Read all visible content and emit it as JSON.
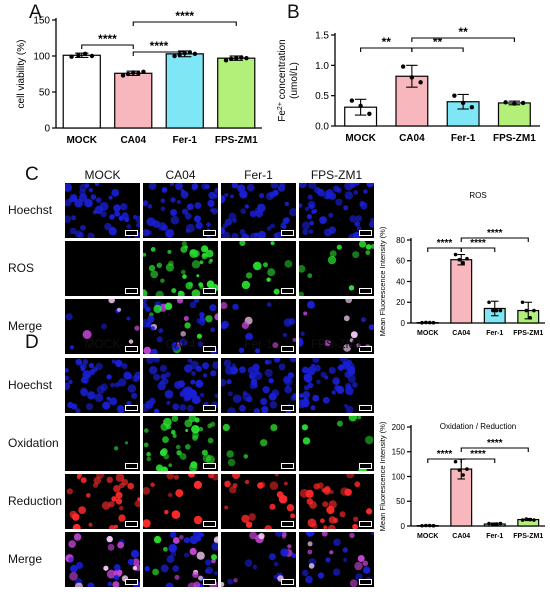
{
  "panels": {
    "a": "A",
    "b": "B",
    "c": "C",
    "d": "D"
  },
  "colors": {
    "MOCK": "#ffffff",
    "CA04": "#f7b7bd",
    "Fer-1": "#7ee6f4",
    "FPS-ZM1": "#b2f07a",
    "hoechst": "#1a1fd6",
    "green": "#29e02e",
    "red": "#ff2a2a"
  },
  "chart_data": [
    {
      "id": "A",
      "type": "bar",
      "categories": [
        "MOCK",
        "CA04",
        "Fer-1",
        "FPS-ZM1"
      ],
      "values": [
        101,
        76,
        103,
        97
      ],
      "errors": [
        3,
        3,
        4,
        3
      ],
      "points": [
        [
          99,
          101,
          103,
          100
        ],
        [
          73,
          75,
          77,
          76,
          78
        ],
        [
          100,
          102,
          104,
          105,
          103
        ],
        [
          94,
          96,
          97,
          98,
          97
        ]
      ],
      "ylabel": "cell viability  (%)",
      "ylim": [
        0,
        150
      ],
      "yticks": [
        0,
        50,
        100,
        150
      ],
      "title": "",
      "sig": [
        {
          "from": 0,
          "to": 1,
          "label": "****"
        },
        {
          "from": 1,
          "to": 2,
          "label": "****"
        },
        {
          "from": 1,
          "to": 3,
          "label": "****"
        }
      ]
    },
    {
      "id": "B",
      "type": "bar",
      "categories": [
        "MOCK",
        "CA04",
        "Fer-1",
        "FPS-ZM1"
      ],
      "values": [
        0.31,
        0.82,
        0.4,
        0.38
      ],
      "errors": [
        0.13,
        0.18,
        0.12,
        0.03
      ],
      "points": [
        [
          0.42,
          0.33,
          0.2
        ],
        [
          0.98,
          0.8,
          0.72
        ],
        [
          0.5,
          0.38,
          0.31
        ],
        [
          0.39,
          0.37,
          0.38
        ]
      ],
      "ylabel_main": "Fe",
      "ylabel_sup": "2+",
      "ylabel_rest": " concentration",
      "ylabel2": "(umol/L)",
      "ylim": [
        0,
        1.5
      ],
      "yticks": [
        0.0,
        0.5,
        1.0,
        1.5
      ],
      "ytick_labels": [
        "0.0",
        "0.5",
        "1.0",
        "1.5"
      ],
      "title": "",
      "sig": [
        {
          "from": 0,
          "to": 1,
          "label": "**"
        },
        {
          "from": 1,
          "to": 2,
          "label": "**"
        },
        {
          "from": 1,
          "to": 3,
          "label": "**"
        }
      ]
    },
    {
      "id": "C",
      "type": "bar",
      "categories": [
        "MOCK",
        "CA04",
        "Fer-1",
        "FPS-ZM1"
      ],
      "values": [
        0.4,
        61,
        14,
        12
      ],
      "errors": [
        0.4,
        5,
        7,
        8
      ],
      "points": [
        [
          0.3,
          0.5,
          0.4,
          0.3
        ],
        [
          66,
          61,
          58,
          62
        ],
        [
          20,
          12,
          12,
          12
        ],
        [
          20,
          12,
          5,
          12
        ]
      ],
      "ylabel": "Mean Fluorescence Intensity  (%)",
      "title": "ROS",
      "ylim": [
        0,
        80
      ],
      "yticks": [
        0,
        20,
        40,
        60,
        80
      ],
      "sig": [
        {
          "from": 0,
          "to": 1,
          "label": "****"
        },
        {
          "from": 1,
          "to": 2,
          "label": "****"
        },
        {
          "from": 1,
          "to": 3,
          "label": "****"
        }
      ]
    },
    {
      "id": "D",
      "type": "bar",
      "categories": [
        "MOCK",
        "CA04",
        "Fer-1",
        "FPS-ZM1"
      ],
      "values": [
        0.8,
        115,
        4,
        13
      ],
      "errors": [
        0.8,
        20,
        2,
        2
      ],
      "points": [
        [
          0.5,
          1,
          0.8,
          0.6
        ],
        [
          130,
          113,
          103,
          115
        ],
        [
          5,
          3,
          4,
          5
        ],
        [
          12,
          14,
          13,
          12
        ]
      ],
      "ylabel": "Mean Fluorescence Intensity  (%)",
      "title": "Oxidation / Reduction",
      "ylim": [
        0,
        200
      ],
      "yticks": [
        0,
        50,
        100,
        150,
        200
      ],
      "sig": [
        {
          "from": 0,
          "to": 1,
          "label": "****"
        },
        {
          "from": 1,
          "to": 2,
          "label": "****"
        },
        {
          "from": 1,
          "to": 3,
          "label": "****"
        }
      ]
    }
  ],
  "gridC": {
    "columns": [
      "MOCK",
      "CA04",
      "Fer-1",
      "FPS-ZM1"
    ],
    "rows": [
      "Hoechst",
      "ROS",
      "Merge"
    ],
    "scale_text": "200 μm"
  },
  "gridD": {
    "columns": [
      "MOCK",
      "CA04",
      "Fer-1",
      "FPS-ZM1"
    ],
    "rows": [
      "Hoechst",
      "Oxidation",
      "Reduction",
      "Merge"
    ],
    "scale_text": "200 μm"
  }
}
